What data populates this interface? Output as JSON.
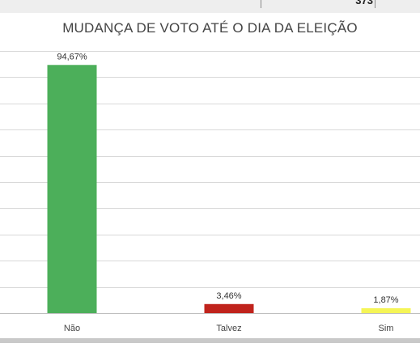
{
  "header": {
    "cell_value": "373"
  },
  "chart_data": {
    "type": "bar",
    "title": "MUDANÇA DE VOTO ATÉ O DIA DA ELEIÇÃO",
    "categories": [
      "Não",
      "Talvez",
      "Sim"
    ],
    "values": [
      94.67,
      3.46,
      1.87
    ],
    "data_labels": [
      "94,67%",
      "3,46%",
      "1,87%"
    ],
    "colors": [
      "#4caf5a",
      "#c0231c",
      "#f5f556"
    ],
    "ylim": [
      0,
      100
    ],
    "grid": true,
    "xlabel": "",
    "ylabel": ""
  }
}
